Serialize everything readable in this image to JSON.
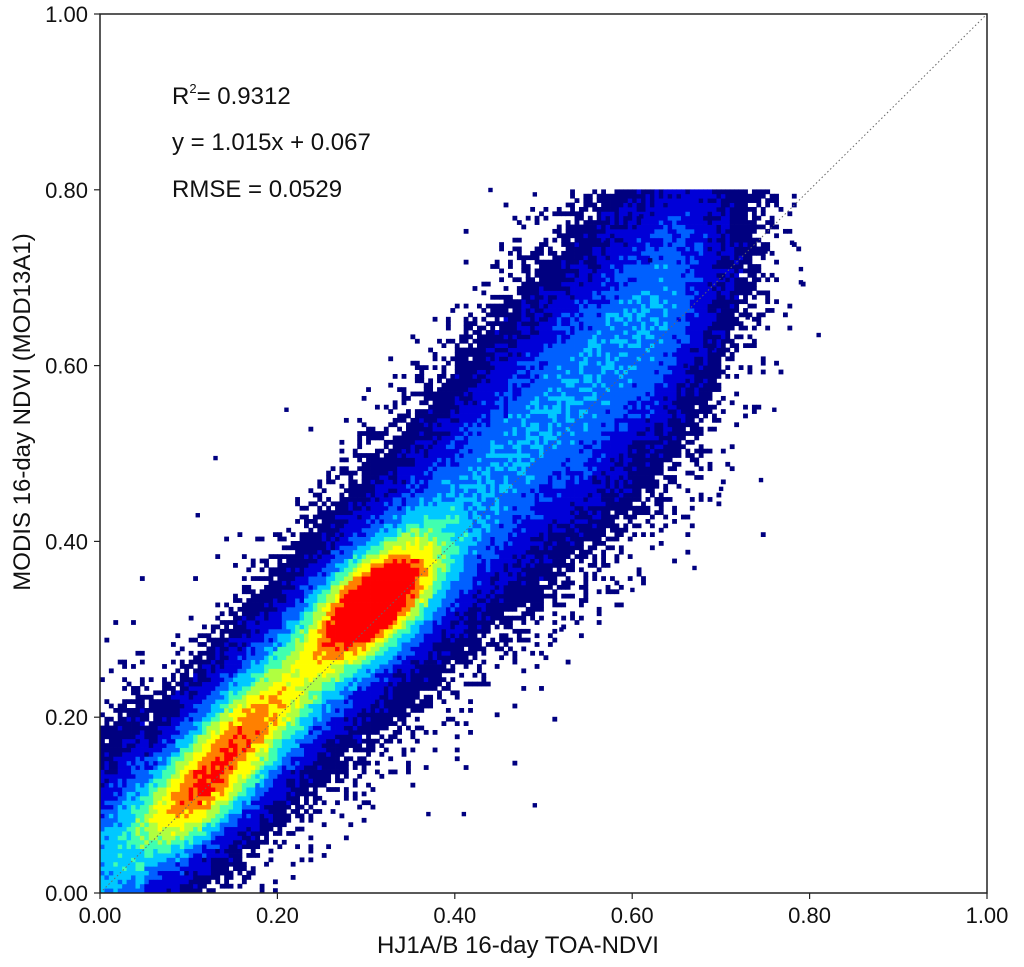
{
  "chart_data": {
    "type": "heatmap",
    "subtype": "density-scatter",
    "xlabel": "HJ1A/B 16-day TOA-NDVI",
    "ylabel": "MODIS 16-day NDVI (MOD13A1)",
    "xlim": [
      0.0,
      1.0
    ],
    "ylim": [
      0.0,
      1.0
    ],
    "x_ticks": [
      "0.00",
      "0.20",
      "0.40",
      "0.60",
      "0.80",
      "1.00"
    ],
    "y_ticks": [
      "0.00",
      "0.20",
      "0.40",
      "0.60",
      "0.80",
      "1.00"
    ],
    "grid": false,
    "reference_line": {
      "style": "dotted",
      "from": [
        0.0,
        0.0
      ],
      "to": [
        1.0,
        1.0
      ]
    },
    "statistics": {
      "r2_label": "R",
      "r2_exponent": "2",
      "r2_value": "= 0.9312",
      "equation": "y = 1.015x + 0.067",
      "rmse": "RMSE = 0.0529"
    },
    "density_colormap": [
      "#000080",
      "#0000d8",
      "#0060ff",
      "#00c8ff",
      "#40ffb0",
      "#b0ff40",
      "#ffff00",
      "#ff8000",
      "#ff0000"
    ],
    "density_peak": {
      "x": 0.31,
      "y": 0.33
    },
    "density_cores": [
      {
        "x": 0.11,
        "y": 0.11,
        "level": 0.55
      },
      {
        "x": 0.31,
        "y": 0.33,
        "level": 1.0
      },
      {
        "x": 0.18,
        "y": 0.2,
        "level": 0.45
      }
    ],
    "cloud_extent": {
      "x_min": 0.0,
      "x_max": 0.8,
      "y_min": 0.0,
      "y_max": 0.8
    },
    "outliers": [
      {
        "x": 0.44,
        "y": 0.8
      },
      {
        "x": 0.49,
        "y": 0.795
      },
      {
        "x": 0.61,
        "y": 0.77
      },
      {
        "x": 0.57,
        "y": 0.74
      },
      {
        "x": 0.78,
        "y": 0.74
      },
      {
        "x": 0.79,
        "y": 0.71
      },
      {
        "x": 0.75,
        "y": 0.73
      },
      {
        "x": 0.79,
        "y": 0.695
      },
      {
        "x": 0.81,
        "y": 0.635
      },
      {
        "x": 0.76,
        "y": 0.55
      },
      {
        "x": 0.745,
        "y": 0.47
      },
      {
        "x": 0.7,
        "y": 0.46
      },
      {
        "x": 0.67,
        "y": 0.37
      },
      {
        "x": 0.6,
        "y": 0.345
      },
      {
        "x": 0.52,
        "y": 0.3
      },
      {
        "x": 0.49,
        "y": 0.1
      },
      {
        "x": 0.41,
        "y": 0.09
      },
      {
        "x": 0.37,
        "y": 0.09
      },
      {
        "x": 0.13,
        "y": 0.495
      },
      {
        "x": 0.21,
        "y": 0.55
      },
      {
        "x": 0.11,
        "y": 0.43
      },
      {
        "x": 0.66,
        "y": 0.6
      },
      {
        "x": 0.69,
        "y": 0.62
      },
      {
        "x": 0.72,
        "y": 0.69
      },
      {
        "x": 0.7,
        "y": 0.7
      },
      {
        "x": 0.73,
        "y": 0.655
      },
      {
        "x": 0.62,
        "y": 0.72
      }
    ]
  }
}
